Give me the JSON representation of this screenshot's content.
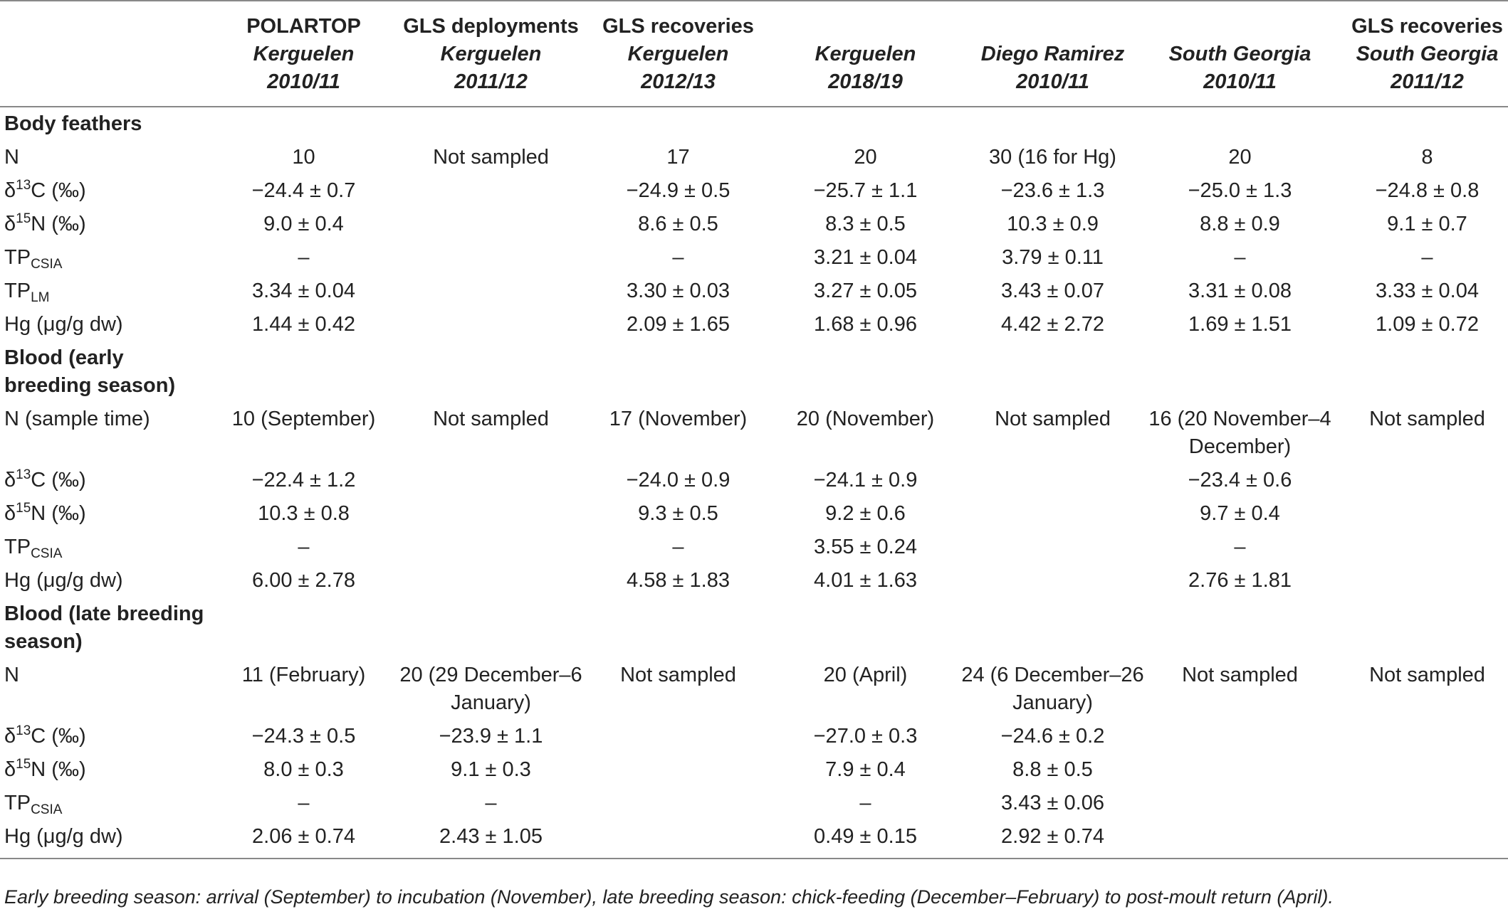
{
  "table": {
    "columns": [
      {
        "line1": "POLARTOP",
        "line2": "Kerguelen",
        "line3": "2010/11"
      },
      {
        "line1": "GLS deployments",
        "line2": "Kerguelen",
        "line3": "2011/12"
      },
      {
        "line1": "GLS recoveries",
        "line2": "Kerguelen",
        "line3": "2012/13"
      },
      {
        "line1": "",
        "line2": "Kerguelen",
        "line3": "2018/19"
      },
      {
        "line1": "",
        "line2": "Diego Ramirez",
        "line3": "2010/11"
      },
      {
        "line1": "",
        "line2": "South Georgia",
        "line3": "2010/11"
      },
      {
        "line1": "GLS recoveries",
        "line2": "South Georgia",
        "line3": "2011/12"
      }
    ],
    "sections": [
      {
        "title": "Body feathers",
        "rows": [
          {
            "label": {
              "text": "N"
            },
            "cells": [
              "10",
              "Not sampled",
              "17",
              "20",
              "30 (16 for Hg)",
              "20",
              "8"
            ]
          },
          {
            "label": {
              "prefix": "δ",
              "sup": "13",
              "suffix": "C (‰)"
            },
            "cells": [
              "−24.4 ± 0.7",
              "",
              "−24.9 ± 0.5",
              "−25.7 ± 1.1",
              "−23.6 ± 1.3",
              "−25.0 ± 1.3",
              "−24.8 ± 0.8"
            ]
          },
          {
            "label": {
              "prefix": "δ",
              "sup": "15",
              "suffix": "N (‰)"
            },
            "cells": [
              "9.0 ± 0.4",
              "",
              "8.6 ± 0.5",
              "8.3 ± 0.5",
              "10.3 ± 0.9",
              "8.8 ± 0.9",
              "9.1 ± 0.7"
            ]
          },
          {
            "label": {
              "prefix": "TP",
              "sub": "CSIA"
            },
            "cells": [
              "–",
              "",
              "–",
              "3.21 ± 0.04",
              "3.79 ± 0.11",
              "–",
              "–"
            ]
          },
          {
            "label": {
              "prefix": "TP",
              "sub": "LM"
            },
            "cells": [
              "3.34 ± 0.04",
              "",
              "3.30 ± 0.03",
              "3.27 ± 0.05",
              "3.43 ± 0.07",
              "3.31 ± 0.08",
              "3.33 ± 0.04"
            ]
          },
          {
            "label": {
              "text": "Hg (μg/g dw)"
            },
            "cells": [
              "1.44 ± 0.42",
              "",
              "2.09 ± 1.65",
              "1.68 ± 0.96",
              "4.42 ± 2.72",
              "1.69 ± 1.51",
              "1.09 ± 0.72"
            ]
          }
        ]
      },
      {
        "title": "Blood (early breeding season)",
        "rows": [
          {
            "label": {
              "text": "N (sample time)"
            },
            "cells": [
              "10 (September)",
              "Not sampled",
              "17 (November)",
              "20 (November)",
              "Not sampled",
              "16 (20 November–4 December)",
              "Not sampled"
            ]
          },
          {
            "label": {
              "prefix": "δ",
              "sup": "13",
              "suffix": "C (‰)"
            },
            "cells": [
              "−22.4 ± 1.2",
              "",
              "−24.0 ± 0.9",
              "−24.1 ± 0.9",
              "",
              "−23.4 ± 0.6",
              ""
            ]
          },
          {
            "label": {
              "prefix": "δ",
              "sup": "15",
              "suffix": "N (‰)"
            },
            "cells": [
              "10.3 ± 0.8",
              "",
              "9.3 ± 0.5",
              "9.2 ± 0.6",
              "",
              "9.7 ± 0.4",
              ""
            ]
          },
          {
            "label": {
              "prefix": "TP",
              "sub": "CSIA"
            },
            "cells": [
              "–",
              "",
              "–",
              "3.55 ± 0.24",
              "",
              "–",
              ""
            ]
          },
          {
            "label": {
              "text": "Hg (μg/g dw)"
            },
            "cells": [
              "6.00 ± 2.78",
              "",
              "4.58 ± 1.83",
              "4.01 ± 1.63",
              "",
              "2.76 ± 1.81",
              ""
            ]
          }
        ]
      },
      {
        "title": "Blood (late breeding season)",
        "rows": [
          {
            "label": {
              "text": "N"
            },
            "cells": [
              "11 (February)",
              "20 (29 December–6 January)",
              "Not sampled",
              "20 (April)",
              "24 (6 December–26 January)",
              "Not sampled",
              "Not sampled"
            ]
          },
          {
            "label": {
              "prefix": "δ",
              "sup": "13",
              "suffix": "C (‰)"
            },
            "cells": [
              "−24.3 ± 0.5",
              "−23.9 ± 1.1",
              "",
              "−27.0 ± 0.3",
              "−24.6 ± 0.2",
              "",
              ""
            ]
          },
          {
            "label": {
              "prefix": "δ",
              "sup": "15",
              "suffix": "N (‰)"
            },
            "cells": [
              "8.0 ± 0.3",
              "9.1 ± 0.3",
              "",
              "7.9 ± 0.4",
              "8.8 ± 0.5",
              "",
              ""
            ]
          },
          {
            "label": {
              "prefix": "TP",
              "sub": "CSIA"
            },
            "cells": [
              "–",
              "–",
              "",
              "–",
              "3.43 ± 0.06",
              "",
              ""
            ]
          },
          {
            "label": {
              "text": "Hg (μg/g dw)"
            },
            "cells": [
              "2.06 ± 0.74",
              "2.43 ± 1.05",
              "",
              "0.49 ± 0.15",
              "2.92 ± 0.74",
              "",
              ""
            ]
          }
        ]
      }
    ]
  },
  "footnote": "Early breeding season: arrival (September) to incubation (November), late breeding season: chick-feeding (December–February) to post-moult return (April)."
}
